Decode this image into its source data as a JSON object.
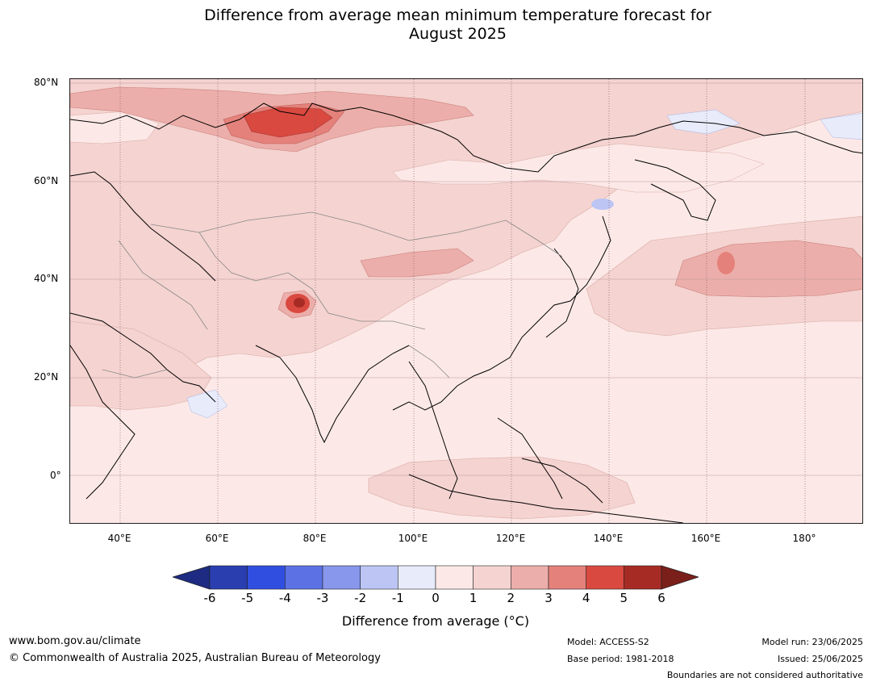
{
  "title_line1": "Difference from average mean minimum temperature forecast for",
  "title_line2": "August 2025",
  "map": {
    "lat_labels": [
      "80°N",
      "60°N",
      "40°N",
      "20°N",
      "0°"
    ],
    "lon_labels": [
      "40°E",
      "60°E",
      "80°E",
      "100°E",
      "120°E",
      "140°E",
      "160°E",
      "180°"
    ],
    "anomaly_colors": {
      "-1_0": "#e8ebfa",
      "0_1": "#fce9e7",
      "1_2": "#f4d3d0",
      "2_3": "#ecaeaa",
      "3_4": "#e5817b",
      "4_5": "#d94940",
      "5_6": "#a62b24"
    }
  },
  "colorbar": {
    "ticks": [
      "-6",
      "-5",
      "-4",
      "-3",
      "-2",
      "-1",
      "0",
      "1",
      "2",
      "3",
      "4",
      "5",
      "6"
    ],
    "colors": [
      "#1d2c82",
      "#2a3eb0",
      "#304fe0",
      "#5c72e4",
      "#8897ec",
      "#bcc5f4",
      "#e8ebfa",
      "#fce9e7",
      "#f4d3d0",
      "#ecaeaa",
      "#e5817b",
      "#d94940",
      "#a62b24",
      "#7b1f1a"
    ],
    "label": "Difference from average (°C)"
  },
  "footer": {
    "website": "www.bom.gov.au/climate",
    "copyright": "© Commonwealth of Australia 2025, Australian Bureau of Meteorology",
    "model": "Model: ACCESS-S2",
    "base_period": "Base period: 1981-2018",
    "model_run": "Model run: 23/06/2025",
    "issued": "Issued: 25/06/2025",
    "disclaimer": "Boundaries are not considered authoritative"
  }
}
